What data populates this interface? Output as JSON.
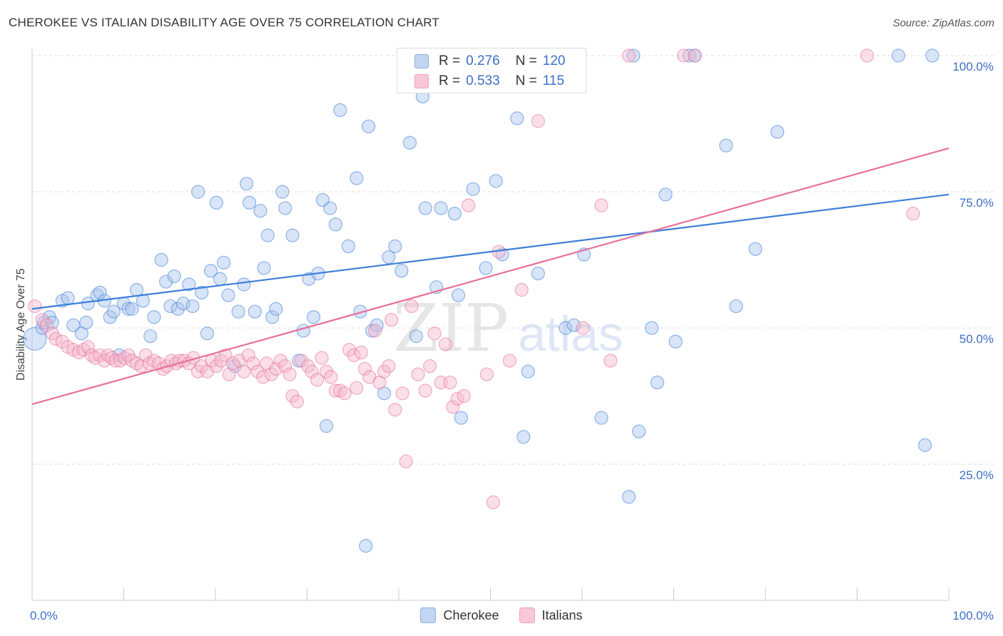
{
  "title": "CHEROKEE VS ITALIAN DISABILITY AGE OVER 75 CORRELATION CHART",
  "source": "Source: ZipAtlas.com",
  "watermark": {
    "zip": "ZIP",
    "atlas": "atlas"
  },
  "colors": {
    "cherokee": "#3d7fd8",
    "italians": "#e8709a",
    "cherokee_fill": "#a8c4ee",
    "italians_fill": "#f5b8cc",
    "value_text": "#3d6fc8"
  },
  "legend": {
    "cherokee": {
      "r_label": "R = ",
      "r_value": "0.276",
      "n_label": "N = ",
      "n_value": "120"
    },
    "italians": {
      "r_label": "R = ",
      "r_value": "0.533",
      "n_label": "N = ",
      "n_value": "115"
    }
  },
  "bottom_legend": [
    "Cherokee",
    "Italians"
  ],
  "chart_data": {
    "type": "scatter",
    "title": "CHEROKEE VS ITALIAN DISABILITY AGE OVER 75 CORRELATION CHART",
    "xlabel": "",
    "ylabel": "Disability Age Over 75",
    "xlim": [
      0,
      100
    ],
    "ylim": [
      0,
      100
    ],
    "x_tick_labels": [
      "0.0%",
      "100.0%"
    ],
    "y_tick_labels": [
      "25.0%",
      "50.0%",
      "75.0%",
      "100.0%"
    ],
    "y_ticks": [
      25,
      50,
      75,
      100
    ],
    "grid": true,
    "legend_position": "top-center",
    "series": [
      {
        "name": "Cherokee",
        "color": "#3d7fd8",
        "trend": {
          "x": [
            0,
            100
          ],
          "y": [
            53.5,
            74.5
          ]
        },
        "points": [
          [
            0.3,
            48
          ],
          [
            1.1,
            50
          ],
          [
            1.3,
            51
          ],
          [
            1.9,
            52
          ],
          [
            2.2,
            51
          ],
          [
            3.3,
            55
          ],
          [
            3.9,
            55.5
          ],
          [
            4.5,
            50.5
          ],
          [
            5.4,
            49
          ],
          [
            5.9,
            51
          ],
          [
            6.1,
            54.5
          ],
          [
            7.1,
            56
          ],
          [
            7.4,
            56.5
          ],
          [
            7.9,
            55
          ],
          [
            8.5,
            52
          ],
          [
            8.9,
            53
          ],
          [
            9.5,
            45
          ],
          [
            10.0,
            54.5
          ],
          [
            10.5,
            53.5
          ],
          [
            10.9,
            53.5
          ],
          [
            11.4,
            57
          ],
          [
            12.1,
            55
          ],
          [
            12.9,
            48.5
          ],
          [
            13.3,
            52
          ],
          [
            14.1,
            62.5
          ],
          [
            14.6,
            58.5
          ],
          [
            15.1,
            54
          ],
          [
            15.5,
            59.5
          ],
          [
            15.9,
            53.5
          ],
          [
            16.5,
            54.5
          ],
          [
            17.1,
            58
          ],
          [
            17.5,
            54
          ],
          [
            18.1,
            75
          ],
          [
            18.5,
            56.5
          ],
          [
            19.1,
            49
          ],
          [
            19.5,
            60.5
          ],
          [
            20.1,
            73
          ],
          [
            20.5,
            59
          ],
          [
            20.9,
            62
          ],
          [
            21.4,
            56
          ],
          [
            22.1,
            43
          ],
          [
            22.5,
            53
          ],
          [
            23.1,
            58
          ],
          [
            23.4,
            76.5
          ],
          [
            23.7,
            73
          ],
          [
            24.3,
            53
          ],
          [
            24.9,
            71.5
          ],
          [
            25.3,
            61
          ],
          [
            25.7,
            67
          ],
          [
            26.2,
            52
          ],
          [
            26.6,
            53.5
          ],
          [
            27.3,
            75
          ],
          [
            27.6,
            72
          ],
          [
            28.4,
            67
          ],
          [
            29.1,
            44
          ],
          [
            29.6,
            49.5
          ],
          [
            30.2,
            59
          ],
          [
            30.7,
            52
          ],
          [
            31.2,
            60
          ],
          [
            31.7,
            73.5
          ],
          [
            32.1,
            32
          ],
          [
            32.5,
            72
          ],
          [
            33.1,
            69
          ],
          [
            33.6,
            90
          ],
          [
            34.5,
            65
          ],
          [
            35.4,
            77.5
          ],
          [
            35.8,
            53
          ],
          [
            36.4,
            10
          ],
          [
            36.7,
            87
          ],
          [
            37.1,
            49.5
          ],
          [
            37.6,
            50.5
          ],
          [
            38.4,
            38
          ],
          [
            38.9,
            63
          ],
          [
            39.6,
            65
          ],
          [
            40.3,
            60.5
          ],
          [
            41.2,
            84
          ],
          [
            41.9,
            48.5
          ],
          [
            42.4,
            100
          ],
          [
            42.6,
            92.5
          ],
          [
            42.9,
            72
          ],
          [
            44.1,
            57.5
          ],
          [
            44.6,
            72
          ],
          [
            45.6,
            100
          ],
          [
            46.1,
            71
          ],
          [
            46.5,
            56
          ],
          [
            46.8,
            33.5
          ],
          [
            48.1,
            75.5
          ],
          [
            49.5,
            61
          ],
          [
            50.6,
            77
          ],
          [
            50.9,
            100
          ],
          [
            51.3,
            63.5
          ],
          [
            52.1,
            100
          ],
          [
            52.9,
            88.5
          ],
          [
            53.6,
            30
          ],
          [
            54.1,
            42
          ],
          [
            55.2,
            60
          ],
          [
            58.2,
            50
          ],
          [
            59.1,
            50.5
          ],
          [
            60.2,
            63.5
          ],
          [
            62.1,
            33.5
          ],
          [
            65.1,
            19
          ],
          [
            65.6,
            100
          ],
          [
            66.2,
            31
          ],
          [
            67.6,
            50
          ],
          [
            68.2,
            40
          ],
          [
            69.1,
            74.5
          ],
          [
            70.2,
            47.5
          ],
          [
            71.7,
            100
          ],
          [
            72.3,
            100
          ],
          [
            75.7,
            83.5
          ],
          [
            76.8,
            54
          ],
          [
            78.9,
            64.5
          ],
          [
            81.3,
            86
          ],
          [
            94.5,
            100
          ],
          [
            97.4,
            28.5
          ],
          [
            98.2,
            100
          ]
        ]
      },
      {
        "name": "Italians",
        "color": "#e8709a",
        "trend": {
          "x": [
            0,
            100
          ],
          "y": [
            36,
            83
          ]
        },
        "points": [
          [
            0.3,
            54
          ],
          [
            1.1,
            51.5
          ],
          [
            1.6,
            50.5
          ],
          [
            2.2,
            49
          ],
          [
            2.6,
            48
          ],
          [
            3.3,
            47.5
          ],
          [
            3.9,
            46.5
          ],
          [
            4.5,
            46
          ],
          [
            5.1,
            45.5
          ],
          [
            5.6,
            46
          ],
          [
            6.1,
            46.5
          ],
          [
            6.5,
            45
          ],
          [
            6.9,
            44.5
          ],
          [
            7.4,
            45
          ],
          [
            7.9,
            44
          ],
          [
            8.3,
            45
          ],
          [
            8.7,
            44.5
          ],
          [
            9.1,
            44
          ],
          [
            9.6,
            44
          ],
          [
            10.1,
            44.5
          ],
          [
            10.5,
            45
          ],
          [
            10.9,
            44
          ],
          [
            11.4,
            43.5
          ],
          [
            11.9,
            43
          ],
          [
            12.4,
            45
          ],
          [
            12.8,
            43.5
          ],
          [
            13.3,
            44
          ],
          [
            13.8,
            43.5
          ],
          [
            14.3,
            42.5
          ],
          [
            14.7,
            43
          ],
          [
            15.2,
            44
          ],
          [
            15.7,
            43.5
          ],
          [
            16.1,
            44
          ],
          [
            16.6,
            44
          ],
          [
            17.1,
            43.5
          ],
          [
            17.6,
            44.5
          ],
          [
            18.1,
            42
          ],
          [
            18.5,
            43
          ],
          [
            19.1,
            42
          ],
          [
            19.6,
            44
          ],
          [
            20.1,
            43
          ],
          [
            20.6,
            44
          ],
          [
            21.1,
            45
          ],
          [
            21.5,
            41.5
          ],
          [
            21.9,
            43.5
          ],
          [
            22.6,
            44
          ],
          [
            23.1,
            42
          ],
          [
            23.6,
            45
          ],
          [
            24.1,
            43.5
          ],
          [
            24.6,
            42
          ],
          [
            25.2,
            41
          ],
          [
            25.6,
            43.5
          ],
          [
            26.1,
            41.5
          ],
          [
            26.6,
            42.5
          ],
          [
            27.1,
            44
          ],
          [
            27.6,
            43
          ],
          [
            28.1,
            41.5
          ],
          [
            28.4,
            37.5
          ],
          [
            28.9,
            36.5
          ],
          [
            29.4,
            44
          ],
          [
            30.1,
            43
          ],
          [
            30.5,
            42
          ],
          [
            31.1,
            40.5
          ],
          [
            31.6,
            44.5
          ],
          [
            32.1,
            42
          ],
          [
            32.6,
            41
          ],
          [
            33.1,
            38.5
          ],
          [
            33.6,
            38.5
          ],
          [
            34.1,
            38
          ],
          [
            34.6,
            46
          ],
          [
            35.1,
            45
          ],
          [
            35.4,
            39
          ],
          [
            35.9,
            45.5
          ],
          [
            36.3,
            42.5
          ],
          [
            36.8,
            41
          ],
          [
            37.4,
            49.5
          ],
          [
            37.9,
            40
          ],
          [
            38.4,
            42
          ],
          [
            38.9,
            43
          ],
          [
            39.2,
            51.5
          ],
          [
            39.6,
            35
          ],
          [
            40.4,
            38
          ],
          [
            40.8,
            25.5
          ],
          [
            41.4,
            54
          ],
          [
            42.1,
            41.5
          ],
          [
            42.9,
            38.5
          ],
          [
            43.4,
            43
          ],
          [
            43.9,
            49
          ],
          [
            44.6,
            40
          ],
          [
            45.1,
            47
          ],
          [
            45.6,
            40
          ],
          [
            45.9,
            35.5
          ],
          [
            46.4,
            37
          ],
          [
            47.1,
            37.5
          ],
          [
            47.6,
            72.5
          ],
          [
            49.6,
            41.5
          ],
          [
            50.3,
            18
          ],
          [
            50.9,
            64
          ],
          [
            52.1,
            44
          ],
          [
            52.9,
            100
          ],
          [
            53.4,
            57
          ],
          [
            55.2,
            88
          ],
          [
            60.1,
            50
          ],
          [
            62.1,
            72.5
          ],
          [
            63.1,
            44
          ],
          [
            65.1,
            100
          ],
          [
            71.1,
            100
          ],
          [
            72.3,
            100
          ],
          [
            91.1,
            100
          ],
          [
            96.1,
            71
          ]
        ]
      }
    ]
  }
}
